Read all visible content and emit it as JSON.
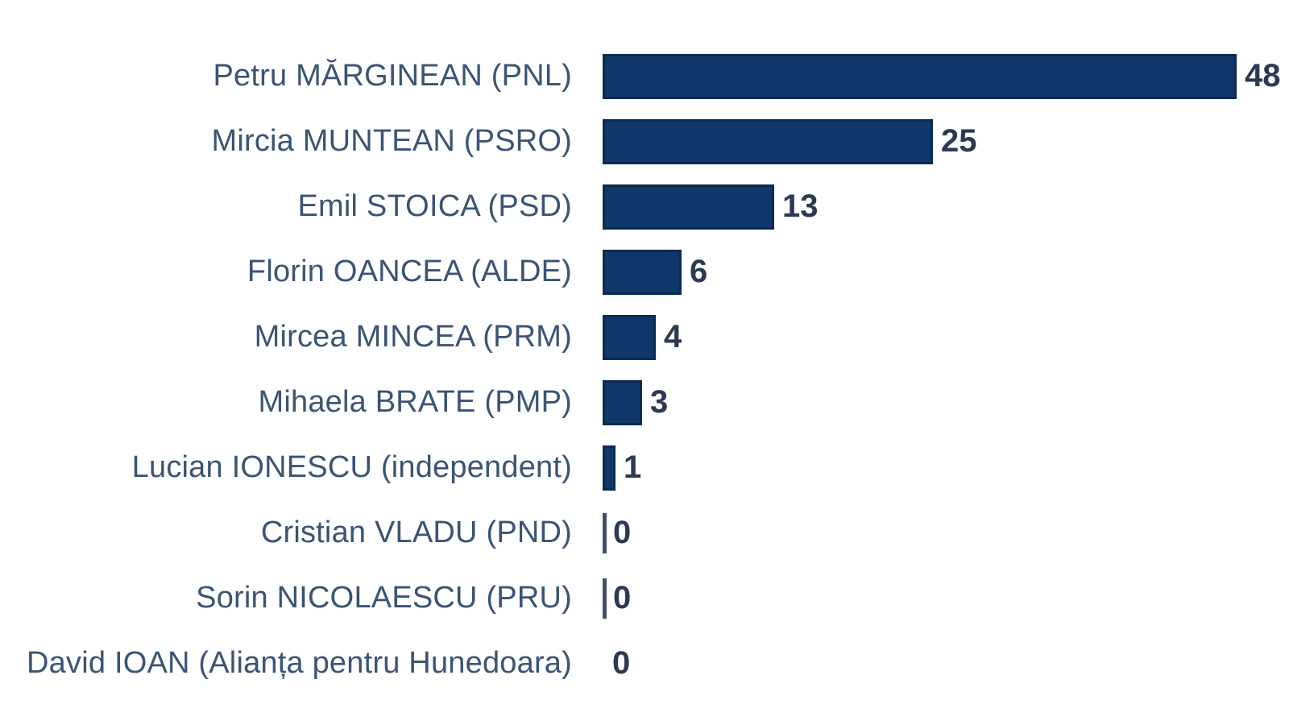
{
  "chart_data": {
    "type": "bar",
    "orientation": "horizontal",
    "title": "",
    "categories": [
      "Petru MĂRGINEAN (PNL)",
      "Mircia MUNTEAN (PSRO)",
      "Emil STOICA (PSD)",
      "Florin OANCEA (ALDE)",
      "Mircea MINCEA (PRM)",
      "Mihaela BRATE (PMP)",
      "Lucian IONESCU (independent)",
      "Cristian VLADU (PND)",
      "Sorin NICOLAESCU (PRU)",
      "David IOAN (Alianța pentru Hunedoara)"
    ],
    "values": [
      48,
      25,
      13,
      6,
      4,
      3,
      1,
      0,
      0,
      0
    ],
    "value_labels": [
      "48",
      "25",
      "13",
      "6",
      "4",
      "3",
      "1",
      "0",
      "0",
      "0"
    ],
    "xlim": [
      0,
      52
    ],
    "grid": false,
    "legend": false,
    "data_labels_position": "end-of-bar",
    "zero_tick_rows": [
      7,
      8
    ],
    "colors": {
      "bar": "#0f3769",
      "bar_border": "#0a2a50",
      "category_label": "#3a5474",
      "value_label": "#2b3a50",
      "zero_tick": "#3f5068",
      "background": "#ffffff"
    }
  }
}
